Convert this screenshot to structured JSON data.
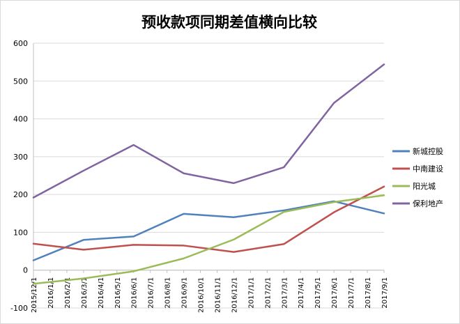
{
  "chart_data": {
    "type": "line",
    "title": "预收款项同期差值横向比较",
    "xlabel": "",
    "ylabel": "",
    "ylim": [
      -100,
      600
    ],
    "yticks": [
      -100,
      0,
      100,
      200,
      300,
      400,
      500,
      600
    ],
    "grid": true,
    "legend_position": "right",
    "categories": [
      "2015/12/1",
      "2016/1/1",
      "2016/2/1",
      "2016/3/1",
      "2016/4/1",
      "2016/5/1",
      "2016/6/1",
      "2016/7/1",
      "2016/8/1",
      "2016/9/1",
      "2016/10/1",
      "2016/11/1",
      "2016/12/1",
      "2017/1/1",
      "2017/2/1",
      "2017/3/1",
      "2017/4/1",
      "2017/5/1",
      "2017/6/1",
      "2017/7/1",
      "2017/8/1",
      "2017/9/1"
    ],
    "series": [
      {
        "name": "新城控股",
        "color": "#4f81bd",
        "points": [
          [
            0,
            26
          ],
          [
            3,
            80
          ],
          [
            6,
            89
          ],
          [
            9,
            149
          ],
          [
            12,
            140
          ],
          [
            15,
            158
          ],
          [
            18,
            182
          ],
          [
            21,
            150
          ]
        ]
      },
      {
        "name": "中南建设",
        "color": "#c0504d",
        "points": [
          [
            0,
            70
          ],
          [
            3,
            54
          ],
          [
            6,
            67
          ],
          [
            9,
            65
          ],
          [
            12,
            48
          ],
          [
            15,
            69
          ],
          [
            18,
            153
          ],
          [
            21,
            221
          ]
        ]
      },
      {
        "name": "阳光城",
        "color": "#9bbb59",
        "points": [
          [
            0,
            -36
          ],
          [
            3,
            -22
          ],
          [
            6,
            -3
          ],
          [
            9,
            31
          ],
          [
            12,
            81
          ],
          [
            15,
            154
          ],
          [
            18,
            180
          ],
          [
            21,
            198
          ]
        ]
      },
      {
        "name": "保利地产",
        "color": "#8064a2",
        "points": [
          [
            0,
            192
          ],
          [
            3,
            263
          ],
          [
            6,
            331
          ],
          [
            9,
            256
          ],
          [
            12,
            230
          ],
          [
            15,
            272
          ],
          [
            18,
            442
          ],
          [
            21,
            544
          ]
        ]
      }
    ]
  }
}
